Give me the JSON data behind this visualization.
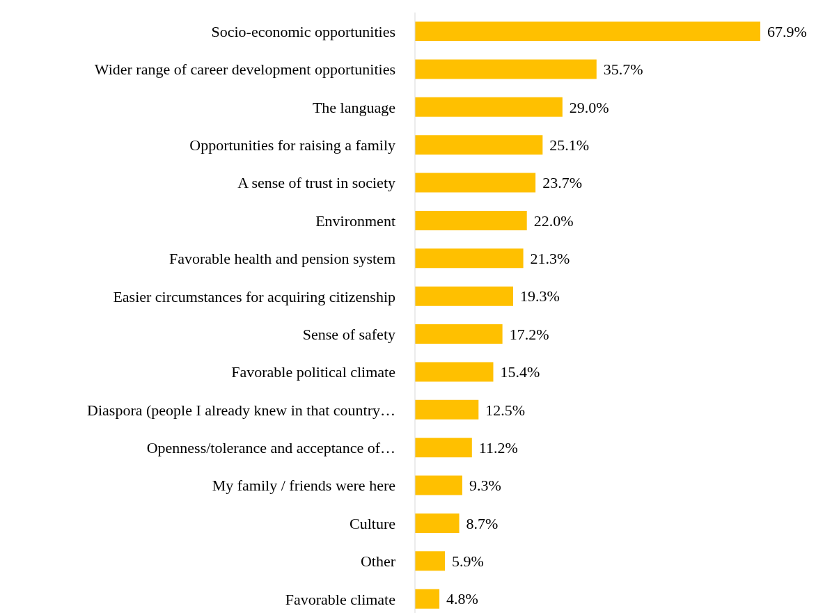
{
  "chart_data": {
    "type": "bar",
    "orientation": "horizontal",
    "color": "#ffc000",
    "categories": [
      "Socio-economic opportunities",
      "Wider range of career development opportunities",
      "The language",
      "Opportunities for raising a family",
      "A sense of trust in society",
      "Environment",
      "Favorable health and pension system",
      "Easier circumstances for acquiring citizenship",
      "Sense of safety",
      "Favorable political climate",
      "Diaspora (people I already knew in that country…",
      "Openness/tolerance and acceptance of…",
      "My family / friends were here",
      "Culture",
      "Other",
      "Favorable climate"
    ],
    "values": [
      67.9,
      35.7,
      29.0,
      25.1,
      23.7,
      22.0,
      21.3,
      19.3,
      17.2,
      15.4,
      12.5,
      11.2,
      9.3,
      8.7,
      5.9,
      4.8
    ],
    "value_labels": [
      "67.9%",
      "35.7%",
      "29.0%",
      "25.1%",
      "23.7%",
      "22.0%",
      "21.3%",
      "19.3%",
      "17.2%",
      "15.4%",
      "12.5%",
      "11.2%",
      "9.3%",
      "8.7%",
      "5.9%",
      "4.8%"
    ],
    "grid": false,
    "legend": false
  }
}
